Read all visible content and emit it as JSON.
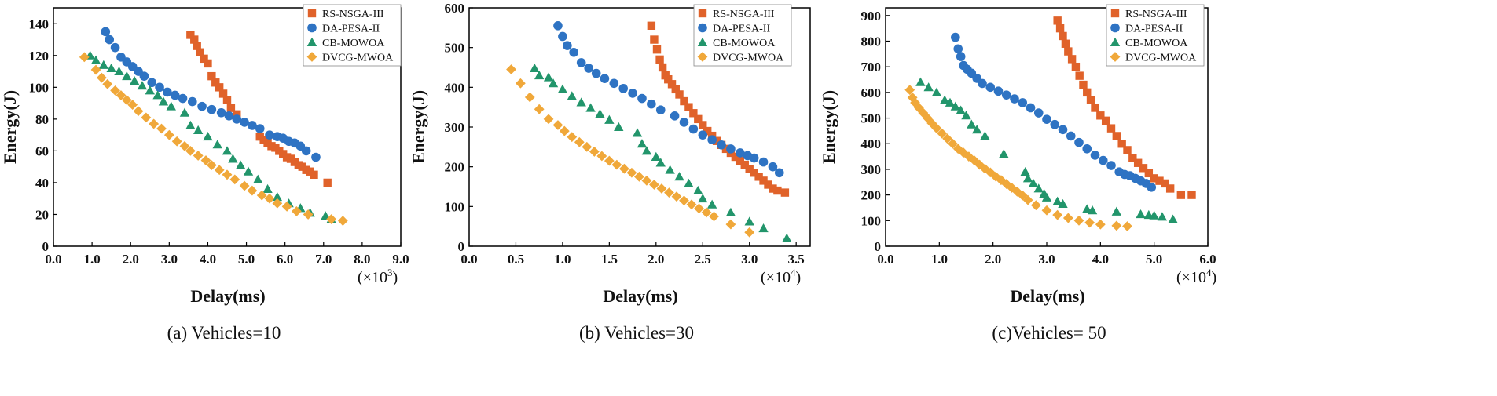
{
  "colors": {
    "RS-NSGA-III": "#e0622a",
    "DA-PESA-II": "#2e73c3",
    "CB-MOWOA": "#22956b",
    "DVCG-MWOA": "#f0a83a"
  },
  "chart_data": [
    {
      "type": "scatter",
      "caption": "(a) Vehicles=10",
      "xlabel": "Delay(ms)",
      "ylabel": "Energy(J)",
      "x_multiplier": "(×10",
      "x_multiplier_exp": "3",
      "x_multiplier_close": ")",
      "xlim": [
        0,
        9
      ],
      "ylim": [
        0,
        150
      ],
      "xticks": [
        0,
        1,
        2,
        3,
        4,
        5,
        6,
        7,
        8,
        9
      ],
      "xtick_labels": [
        "0.0",
        "1.0",
        "2.0",
        "3.0",
        "4.0",
        "5.0",
        "6.0",
        "7.0",
        "8.0",
        "9.0"
      ],
      "yticks": [
        0,
        20,
        40,
        60,
        80,
        100,
        120,
        140
      ],
      "ytick_labels": [
        "0",
        "20",
        "40",
        "60",
        "80",
        "100",
        "120",
        "140"
      ],
      "legend": [
        "RS-NSGA-III",
        "DA-PESA-II",
        "CB-MOWOA",
        "DVCG-MWOA"
      ],
      "series": [
        {
          "name": "RS-NSGA-III",
          "marker": "square",
          "x": [
            3.55,
            3.65,
            3.72,
            3.8,
            3.9,
            4.0,
            4.1,
            4.2,
            4.3,
            4.4,
            4.5,
            4.6,
            4.75,
            5.35,
            5.45,
            5.55,
            5.65,
            5.75,
            5.85,
            5.95,
            6.05,
            6.15,
            6.25,
            6.35,
            6.45,
            6.55,
            6.65,
            6.75,
            7.1
          ],
          "y": [
            133,
            130,
            126,
            122,
            118,
            115,
            107,
            103,
            100,
            96,
            92,
            87,
            83,
            69,
            67,
            65,
            63,
            62,
            60,
            58,
            56,
            55,
            53,
            51,
            50,
            48,
            47,
            45,
            40
          ]
        },
        {
          "name": "DA-PESA-II",
          "marker": "circle",
          "x": [
            1.35,
            1.45,
            1.6,
            1.75,
            1.9,
            2.05,
            2.2,
            2.35,
            2.55,
            2.75,
            2.95,
            3.15,
            3.35,
            3.6,
            3.85,
            4.1,
            4.35,
            4.55,
            4.75,
            4.95,
            5.15,
            5.35,
            5.6,
            5.8,
            5.95,
            6.1,
            6.25,
            6.4,
            6.55,
            6.8
          ],
          "y": [
            135,
            130,
            125,
            119,
            116,
            113,
            110,
            107,
            103,
            100,
            97,
            95,
            93,
            91,
            88,
            86,
            84,
            82,
            80,
            78,
            76,
            74,
            70,
            69,
            68,
            66,
            65,
            63,
            60,
            56
          ]
        },
        {
          "name": "CB-MOWOA",
          "marker": "triangle",
          "x": [
            0.95,
            1.1,
            1.3,
            1.5,
            1.7,
            1.9,
            2.1,
            2.3,
            2.5,
            2.7,
            2.85,
            3.05,
            3.4,
            3.55,
            3.75,
            4.0,
            4.25,
            4.5,
            4.65,
            4.85,
            5.05,
            5.3,
            5.55,
            5.8,
            6.1,
            6.4,
            6.65,
            7.05,
            7.2
          ],
          "y": [
            120,
            117,
            114,
            112,
            110,
            107,
            104,
            101,
            98,
            95,
            91,
            88,
            84,
            76,
            73,
            69,
            64,
            60,
            55,
            51,
            47,
            42,
            36,
            31,
            27,
            24,
            21,
            19,
            17
          ]
        },
        {
          "name": "DVCG-MWOA",
          "marker": "diamond",
          "x": [
            0.8,
            1.1,
            1.25,
            1.4,
            1.6,
            1.75,
            1.9,
            2.05,
            2.2,
            2.4,
            2.6,
            2.8,
            3.0,
            3.2,
            3.4,
            3.55,
            3.75,
            3.95,
            4.1,
            4.3,
            4.5,
            4.7,
            4.95,
            5.15,
            5.4,
            5.6,
            5.8,
            6.05,
            6.3,
            6.6,
            7.2,
            7.5
          ],
          "y": [
            119,
            111,
            106,
            102,
            98,
            95,
            92,
            89,
            85,
            81,
            77,
            74,
            70,
            66,
            63,
            60,
            57,
            54,
            51,
            48,
            45,
            42,
            38,
            35,
            32,
            30,
            27,
            25,
            22,
            20,
            17,
            16
          ]
        }
      ]
    },
    {
      "type": "scatter",
      "caption": "(b) Vehicles=30",
      "xlabel": "Delay(ms)",
      "ylabel": "Energy(J)",
      "x_multiplier": "(×10",
      "x_multiplier_exp": "4",
      "x_multiplier_close": ")",
      "xlim": [
        0,
        3.65
      ],
      "ylim": [
        0,
        600
      ],
      "xticks": [
        0,
        0.5,
        1.0,
        1.5,
        2.0,
        2.5,
        3.0,
        3.5
      ],
      "xtick_labels": [
        "0.0",
        "0.5",
        "1.0",
        "1.5",
        "2.0",
        "2.5",
        "3.0",
        "3.5"
      ],
      "yticks": [
        0,
        100,
        200,
        300,
        400,
        500,
        600
      ],
      "ytick_labels": [
        "0",
        "100",
        "200",
        "300",
        "400",
        "500",
        "600"
      ],
      "legend": [
        "RS-NSGA-III",
        "DA-PESA-II",
        "CB-MOWOA",
        "DVCG-MWOA"
      ],
      "series": [
        {
          "name": "RS-NSGA-III",
          "marker": "square",
          "x": [
            1.95,
            1.98,
            2.01,
            2.04,
            2.07,
            2.1,
            2.13,
            2.17,
            2.21,
            2.25,
            2.3,
            2.35,
            2.4,
            2.45,
            2.5,
            2.55,
            2.6,
            2.65,
            2.7,
            2.75,
            2.8,
            2.85,
            2.9,
            2.95,
            3.0,
            3.05,
            3.1,
            3.15,
            3.2,
            3.25,
            3.3,
            3.38
          ],
          "y": [
            555,
            520,
            495,
            470,
            450,
            430,
            420,
            408,
            395,
            382,
            365,
            350,
            335,
            320,
            305,
            290,
            278,
            265,
            255,
            245,
            235,
            225,
            215,
            205,
            195,
            185,
            175,
            165,
            155,
            145,
            140,
            135
          ]
        },
        {
          "name": "DA-PESA-II",
          "marker": "circle",
          "x": [
            0.95,
            1.0,
            1.05,
            1.12,
            1.2,
            1.28,
            1.36,
            1.45,
            1.55,
            1.65,
            1.75,
            1.85,
            1.95,
            2.05,
            2.2,
            2.3,
            2.4,
            2.5,
            2.6,
            2.7,
            2.8,
            2.9,
            2.98,
            3.05,
            3.15,
            3.25,
            3.32
          ],
          "y": [
            555,
            528,
            505,
            488,
            462,
            448,
            435,
            422,
            410,
            397,
            385,
            372,
            358,
            343,
            328,
            312,
            295,
            280,
            268,
            255,
            245,
            235,
            228,
            222,
            212,
            200,
            185
          ]
        },
        {
          "name": "CB-MOWOA",
          "marker": "triangle",
          "x": [
            0.7,
            0.75,
            0.85,
            0.9,
            1.0,
            1.1,
            1.2,
            1.3,
            1.4,
            1.5,
            1.6,
            1.8,
            1.85,
            1.9,
            2.0,
            2.05,
            2.15,
            2.25,
            2.35,
            2.45,
            2.5,
            2.6,
            2.8,
            3.0,
            3.15,
            3.4
          ],
          "y": [
            448,
            430,
            425,
            410,
            395,
            378,
            362,
            348,
            333,
            318,
            300,
            285,
            258,
            240,
            225,
            210,
            192,
            175,
            158,
            140,
            120,
            105,
            85,
            62,
            45,
            20
          ]
        },
        {
          "name": "DVCG-MWOA",
          "marker": "diamond",
          "x": [
            0.45,
            0.55,
            0.65,
            0.75,
            0.85,
            0.95,
            1.02,
            1.1,
            1.18,
            1.26,
            1.34,
            1.42,
            1.5,
            1.58,
            1.66,
            1.74,
            1.82,
            1.9,
            1.98,
            2.06,
            2.14,
            2.22,
            2.3,
            2.38,
            2.46,
            2.54,
            2.62,
            2.8,
            3.0
          ],
          "y": [
            445,
            410,
            375,
            345,
            320,
            305,
            290,
            275,
            262,
            250,
            238,
            227,
            215,
            205,
            195,
            185,
            175,
            165,
            155,
            145,
            135,
            125,
            115,
            105,
            95,
            85,
            75,
            55,
            35
          ]
        }
      ]
    },
    {
      "type": "scatter",
      "caption": "(c)Vehicles= 50",
      "xlabel": "Delay(ms)",
      "ylabel": "Energy(J)",
      "x_multiplier": "(×10",
      "x_multiplier_exp": "4",
      "x_multiplier_close": ")",
      "xlim": [
        0,
        6
      ],
      "ylim": [
        0,
        930
      ],
      "xticks": [
        0,
        1,
        2,
        3,
        4,
        5,
        6
      ],
      "xtick_labels": [
        "0.0",
        "1.0",
        "2.0",
        "3.0",
        "4.0",
        "5.0",
        "6.0"
      ],
      "yticks": [
        0,
        100,
        200,
        300,
        400,
        500,
        600,
        700,
        800,
        900
      ],
      "ytick_labels": [
        "0",
        "100",
        "200",
        "300",
        "400",
        "500",
        "600",
        "700",
        "800",
        "900"
      ],
      "legend": [
        "RS-NSGA-III",
        "DA-PESA-II",
        "CB-MOWOA",
        "DVCG-MWOA"
      ],
      "series": [
        {
          "name": "RS-NSGA-III",
          "marker": "square",
          "x": [
            3.2,
            3.25,
            3.3,
            3.35,
            3.4,
            3.47,
            3.54,
            3.61,
            3.68,
            3.75,
            3.82,
            3.9,
            4.0,
            4.1,
            4.2,
            4.3,
            4.4,
            4.5,
            4.6,
            4.7,
            4.8,
            4.9,
            5.0,
            5.1,
            5.2,
            5.3,
            5.5,
            5.7
          ],
          "y": [
            880,
            850,
            820,
            790,
            760,
            730,
            700,
            665,
            630,
            600,
            570,
            540,
            510,
            490,
            460,
            430,
            400,
            375,
            345,
            325,
            305,
            285,
            265,
            255,
            245,
            225,
            200,
            200
          ]
        },
        {
          "name": "DA-PESA-II",
          "marker": "circle",
          "x": [
            1.3,
            1.35,
            1.4,
            1.45,
            1.52,
            1.6,
            1.7,
            1.8,
            1.95,
            2.1,
            2.25,
            2.4,
            2.55,
            2.7,
            2.85,
            3.0,
            3.15,
            3.3,
            3.45,
            3.6,
            3.75,
            3.9,
            4.05,
            4.2,
            4.35,
            4.45,
            4.55,
            4.65,
            4.75,
            4.85,
            4.95
          ],
          "y": [
            815,
            770,
            740,
            705,
            690,
            675,
            655,
            635,
            620,
            605,
            590,
            575,
            560,
            540,
            520,
            495,
            475,
            455,
            430,
            405,
            380,
            355,
            335,
            315,
            290,
            280,
            275,
            265,
            255,
            245,
            230
          ]
        },
        {
          "name": "CB-MOWOA",
          "marker": "triangle",
          "x": [
            0.65,
            0.8,
            0.95,
            1.1,
            1.2,
            1.3,
            1.4,
            1.5,
            1.6,
            1.7,
            1.85,
            2.2,
            2.6,
            2.65,
            2.75,
            2.85,
            2.95,
            3.0,
            3.2,
            3.3,
            3.75,
            3.85,
            4.3,
            4.75,
            4.9,
            5.0,
            5.15,
            5.35
          ],
          "y": [
            640,
            620,
            600,
            570,
            560,
            545,
            530,
            510,
            475,
            455,
            430,
            360,
            290,
            265,
            245,
            225,
            205,
            190,
            175,
            165,
            145,
            140,
            135,
            125,
            122,
            120,
            115,
            105
          ]
        },
        {
          "name": "DVCG-MWOA",
          "marker": "diamond",
          "x": [
            0.45,
            0.5,
            0.55,
            0.62,
            0.7,
            0.78,
            0.86,
            0.95,
            1.05,
            1.15,
            1.25,
            1.35,
            1.45,
            1.55,
            1.65,
            1.75,
            1.85,
            1.95,
            2.05,
            2.15,
            2.25,
            2.35,
            2.45,
            2.55,
            2.65,
            2.8,
            3.0,
            3.2,
            3.4,
            3.6,
            3.8,
            4.0,
            4.3,
            4.5
          ],
          "y": [
            610,
            580,
            560,
            540,
            520,
            500,
            480,
            460,
            440,
            420,
            400,
            380,
            365,
            350,
            335,
            318,
            302,
            288,
            272,
            258,
            243,
            228,
            213,
            198,
            180,
            160,
            140,
            122,
            110,
            100,
            92,
            85,
            80,
            78
          ]
        }
      ]
    }
  ]
}
